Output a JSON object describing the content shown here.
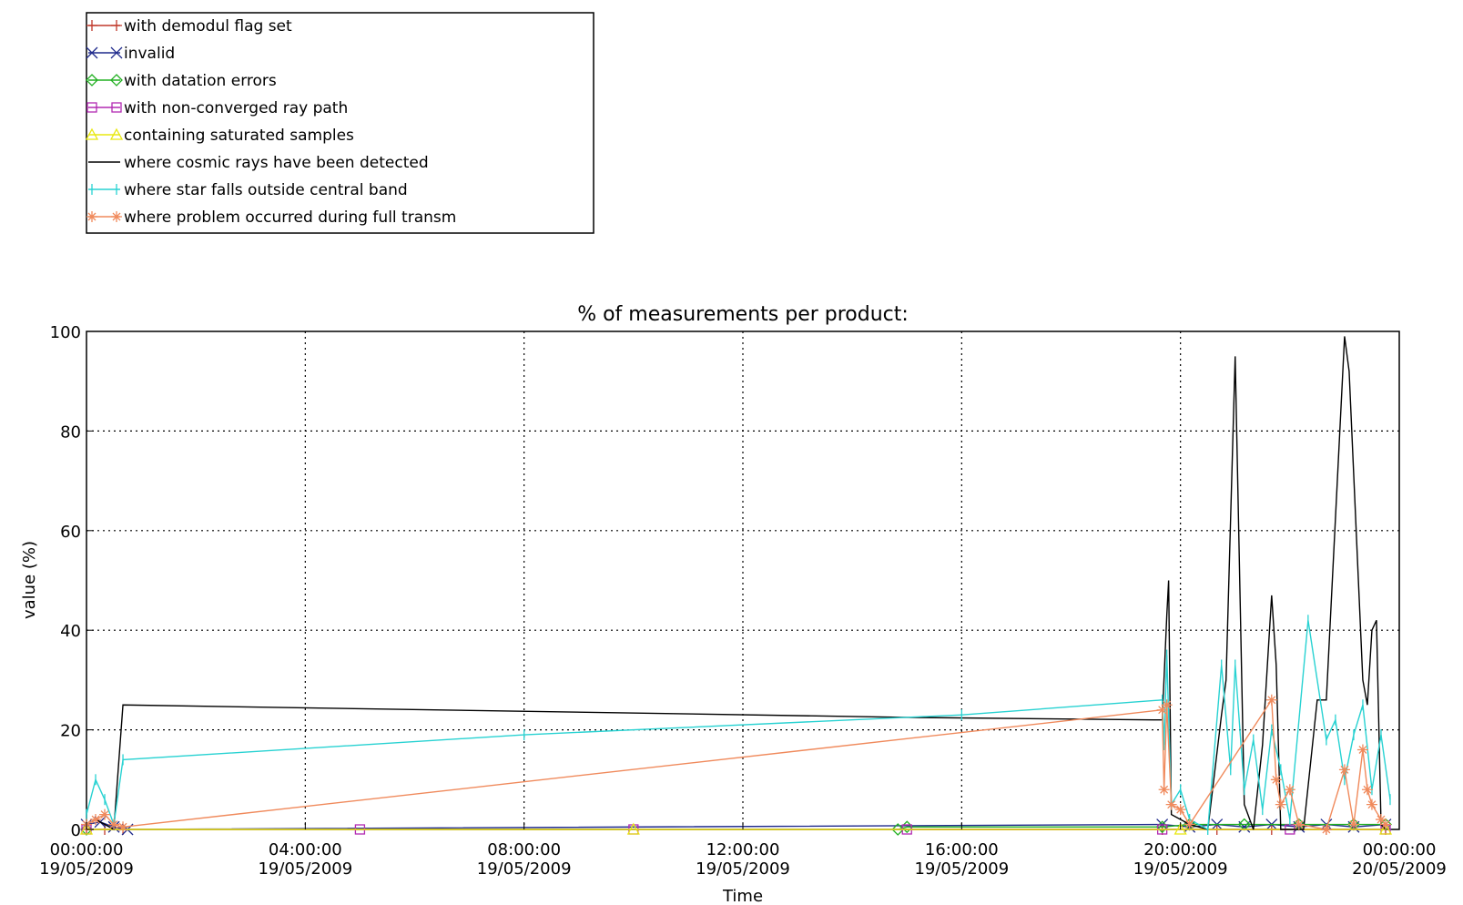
{
  "chart_data": {
    "type": "line",
    "title": "% of measurements per product:",
    "xlabel": "Time",
    "ylabel": "value (%)",
    "ylim": [
      0,
      100
    ],
    "y_ticks": [
      0,
      20,
      40,
      60,
      80,
      100
    ],
    "xlim": [
      "2009-05-19T00:00",
      "2009-05-20T00:00"
    ],
    "x_ticks": [
      {
        "time": "00:00:00",
        "date": "19/05/2009"
      },
      {
        "time": "04:00:00",
        "date": "19/05/2009"
      },
      {
        "time": "08:00:00",
        "date": "19/05/2009"
      },
      {
        "time": "12:00:00",
        "date": "19/05/2009"
      },
      {
        "time": "16:00:00",
        "date": "19/05/2009"
      },
      {
        "time": "20:00:00",
        "date": "19/05/2009"
      },
      {
        "time": "00:00:00",
        "date": "20/05/2009"
      }
    ],
    "grid": true,
    "legend_position": "top-left, above plot",
    "series": [
      {
        "name": "with demodul flag set",
        "color": "#c0392b",
        "marker": "plus",
        "points": [
          [
            "00:00",
            0
          ],
          [
            "00:20",
            0
          ],
          [
            "00:40",
            0
          ],
          [
            "19:40",
            0
          ],
          [
            "20:40",
            0
          ],
          [
            "21:40",
            0
          ],
          [
            "22:40",
            0
          ],
          [
            "23:45",
            0
          ]
        ]
      },
      {
        "name": "invalid",
        "color": "#1f2a8c",
        "marker": "x",
        "points": [
          [
            "00:00",
            1
          ],
          [
            "00:15",
            1.5
          ],
          [
            "00:30",
            0.5
          ],
          [
            "00:45",
            0
          ],
          [
            "19:40",
            1
          ],
          [
            "20:10",
            0.5
          ],
          [
            "20:40",
            1
          ],
          [
            "21:10",
            0.5
          ],
          [
            "21:40",
            1
          ],
          [
            "22:10",
            0.5
          ],
          [
            "22:40",
            1
          ],
          [
            "23:10",
            0.5
          ],
          [
            "23:45",
            1
          ]
        ]
      },
      {
        "name": "with datation errors",
        "color": "#22b022",
        "marker": "diamond",
        "points": [
          [
            "00:00",
            0
          ],
          [
            "14:50",
            0
          ],
          [
            "15:00",
            0.5
          ],
          [
            "19:40",
            0.5
          ],
          [
            "20:10",
            1
          ],
          [
            "21:10",
            1
          ],
          [
            "22:10",
            1
          ],
          [
            "23:10",
            1
          ],
          [
            "23:45",
            1
          ]
        ]
      },
      {
        "name": "with non-converged ray path",
        "color": "#b22ab2",
        "marker": "square",
        "points": [
          [
            "00:00",
            0
          ],
          [
            "05:00",
            0
          ],
          [
            "10:00",
            0
          ],
          [
            "15:00",
            0
          ],
          [
            "19:40",
            0
          ],
          [
            "22:00",
            0
          ],
          [
            "23:45",
            0
          ]
        ]
      },
      {
        "name": "containing saturated samples",
        "color": "#e8e810",
        "marker": "triangle",
        "points": [
          [
            "00:00",
            0
          ],
          [
            "10:00",
            0
          ],
          [
            "20:00",
            0
          ],
          [
            "23:45",
            0
          ]
        ]
      },
      {
        "name": "where cosmic rays have been detected",
        "color": "#000000",
        "marker": "none",
        "points": [
          [
            "00:00",
            1
          ],
          [
            "00:10",
            2
          ],
          [
            "00:20",
            1
          ],
          [
            "00:30",
            0
          ],
          [
            "00:40",
            25
          ],
          [
            "15:00",
            22.5
          ],
          [
            "19:30",
            22
          ],
          [
            "19:40",
            22
          ],
          [
            "19:45",
            43
          ],
          [
            "19:47",
            50
          ],
          [
            "19:50",
            3
          ],
          [
            "20:10",
            1
          ],
          [
            "20:30",
            0
          ],
          [
            "20:45",
            23
          ],
          [
            "20:50",
            30
          ],
          [
            "21:00",
            95
          ],
          [
            "21:10",
            5
          ],
          [
            "21:20",
            0
          ],
          [
            "21:30",
            17
          ],
          [
            "21:40",
            47
          ],
          [
            "21:45",
            33
          ],
          [
            "21:50",
            0
          ],
          [
            "22:15",
            0
          ],
          [
            "22:30",
            26
          ],
          [
            "22:40",
            26
          ],
          [
            "23:00",
            99
          ],
          [
            "23:05",
            92
          ],
          [
            "23:20",
            30
          ],
          [
            "23:25",
            25
          ],
          [
            "23:30",
            40
          ],
          [
            "23:35",
            42
          ],
          [
            "23:40",
            1
          ],
          [
            "23:45",
            0
          ]
        ]
      },
      {
        "name": "where star falls outside central band",
        "color": "#28d2d2",
        "marker": "bar",
        "points": [
          [
            "00:00",
            3
          ],
          [
            "00:10",
            10
          ],
          [
            "00:20",
            6
          ],
          [
            "00:30",
            1
          ],
          [
            "00:40",
            14
          ],
          [
            "08:00",
            19
          ],
          [
            "16:00",
            23
          ],
          [
            "19:40",
            26
          ],
          [
            "19:42",
            17
          ],
          [
            "19:45",
            35
          ],
          [
            "19:50",
            5
          ],
          [
            "20:00",
            8
          ],
          [
            "20:10",
            2
          ],
          [
            "20:30",
            0
          ],
          [
            "20:45",
            33
          ],
          [
            "20:55",
            12
          ],
          [
            "21:00",
            33
          ],
          [
            "21:10",
            8
          ],
          [
            "21:20",
            18
          ],
          [
            "21:30",
            4
          ],
          [
            "21:40",
            20
          ],
          [
            "21:50",
            12
          ],
          [
            "22:00",
            2
          ],
          [
            "22:20",
            42
          ],
          [
            "22:40",
            18
          ],
          [
            "22:50",
            22
          ],
          [
            "23:00",
            10
          ],
          [
            "23:10",
            19
          ],
          [
            "23:20",
            25
          ],
          [
            "23:30",
            8
          ],
          [
            "23:40",
            19
          ],
          [
            "23:50",
            6
          ]
        ]
      },
      {
        "name": "where problem occurred during full transm",
        "color": "#f08a5c",
        "marker": "asterisk",
        "points": [
          [
            "00:00",
            1
          ],
          [
            "00:10",
            2
          ],
          [
            "00:20",
            3
          ],
          [
            "00:30",
            1
          ],
          [
            "00:40",
            0.5
          ],
          [
            "19:40",
            24
          ],
          [
            "19:42",
            8
          ],
          [
            "19:45",
            25
          ],
          [
            "19:50",
            5
          ],
          [
            "20:00",
            4
          ],
          [
            "20:10",
            1
          ],
          [
            "21:40",
            26
          ],
          [
            "21:45",
            10
          ],
          [
            "21:50",
            5
          ],
          [
            "22:00",
            8
          ],
          [
            "22:10",
            1
          ],
          [
            "22:40",
            0
          ],
          [
            "23:00",
            12
          ],
          [
            "23:10",
            1
          ],
          [
            "23:20",
            16
          ],
          [
            "23:25",
            8
          ],
          [
            "23:30",
            5
          ],
          [
            "23:40",
            2
          ],
          [
            "23:45",
            1
          ]
        ]
      }
    ]
  }
}
